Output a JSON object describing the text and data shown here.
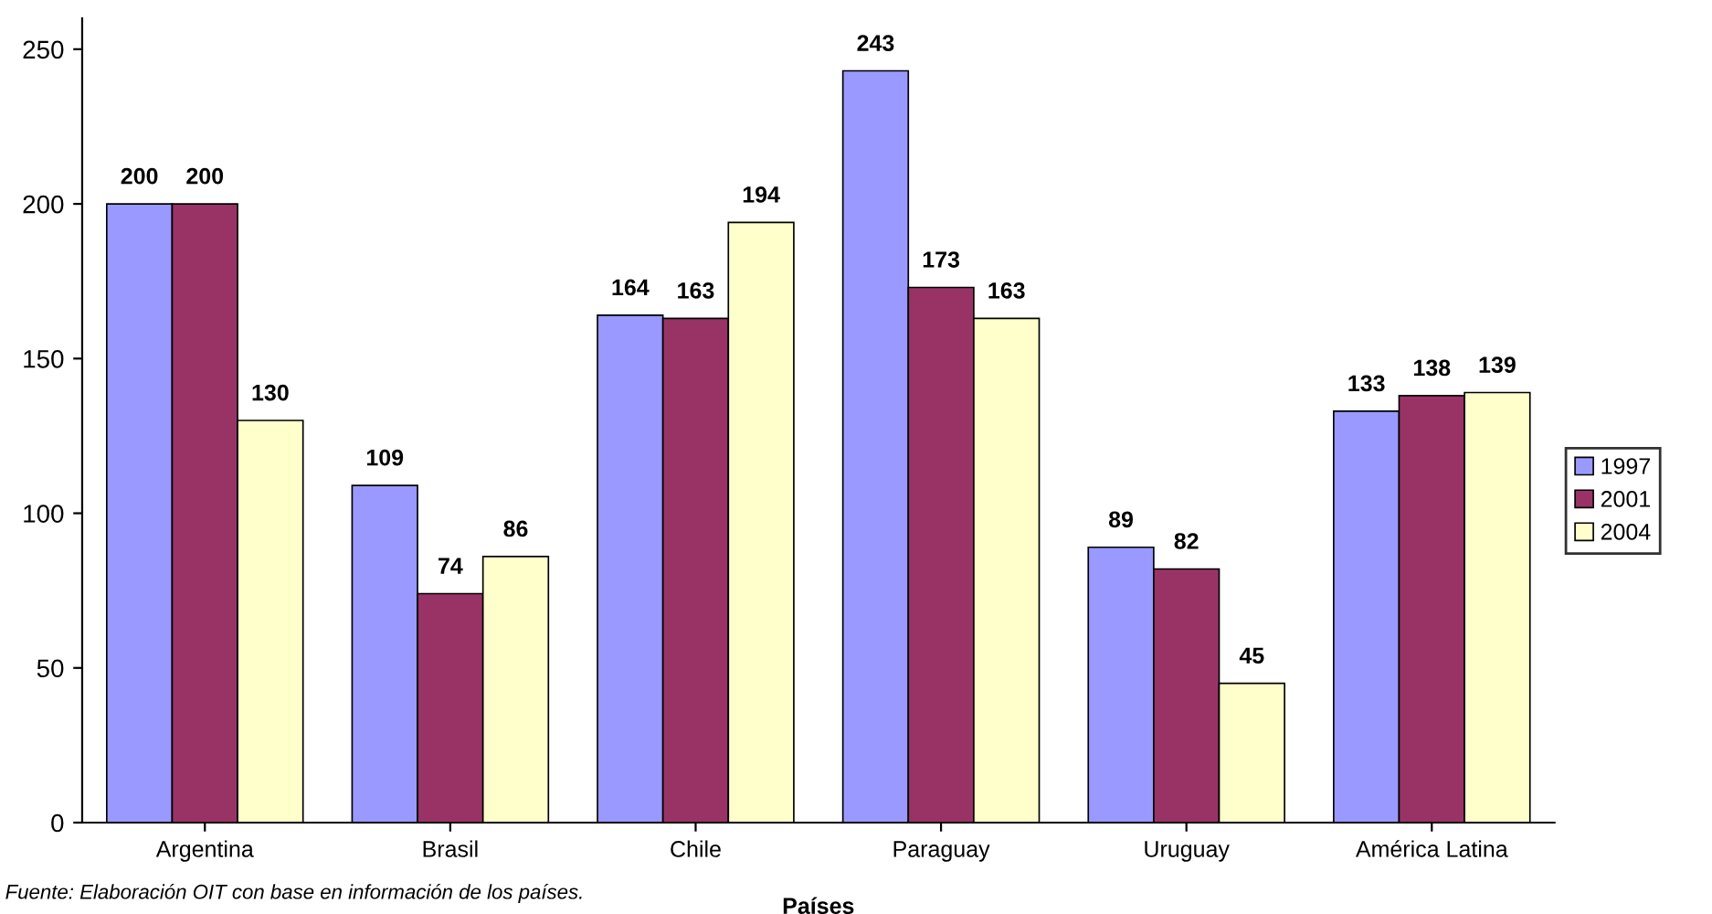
{
  "chart_data": {
    "type": "bar",
    "xlabel": "Países",
    "categories": [
      "Argentina",
      "Brasil",
      "Chile",
      "Paraguay",
      "Uruguay",
      "América Latina"
    ],
    "series": [
      {
        "name": "1997",
        "color": "#9999ff",
        "values": [
          200,
          109,
          164,
          243,
          89,
          133
        ]
      },
      {
        "name": "2001",
        "color": "#993366",
        "values": [
          200,
          74,
          163,
          173,
          82,
          138
        ]
      },
      {
        "name": "2004",
        "color": "#ffffcc",
        "values": [
          130,
          86,
          194,
          163,
          45,
          139
        ]
      }
    ],
    "ylim": [
      0,
      260
    ],
    "yticks": [
      0,
      50,
      100,
      150,
      200,
      250
    ],
    "data_labels": true,
    "legend": "right",
    "grid": false,
    "annotations": [
      "Fuente: Elaboración OIT con base en información de los países."
    ]
  }
}
